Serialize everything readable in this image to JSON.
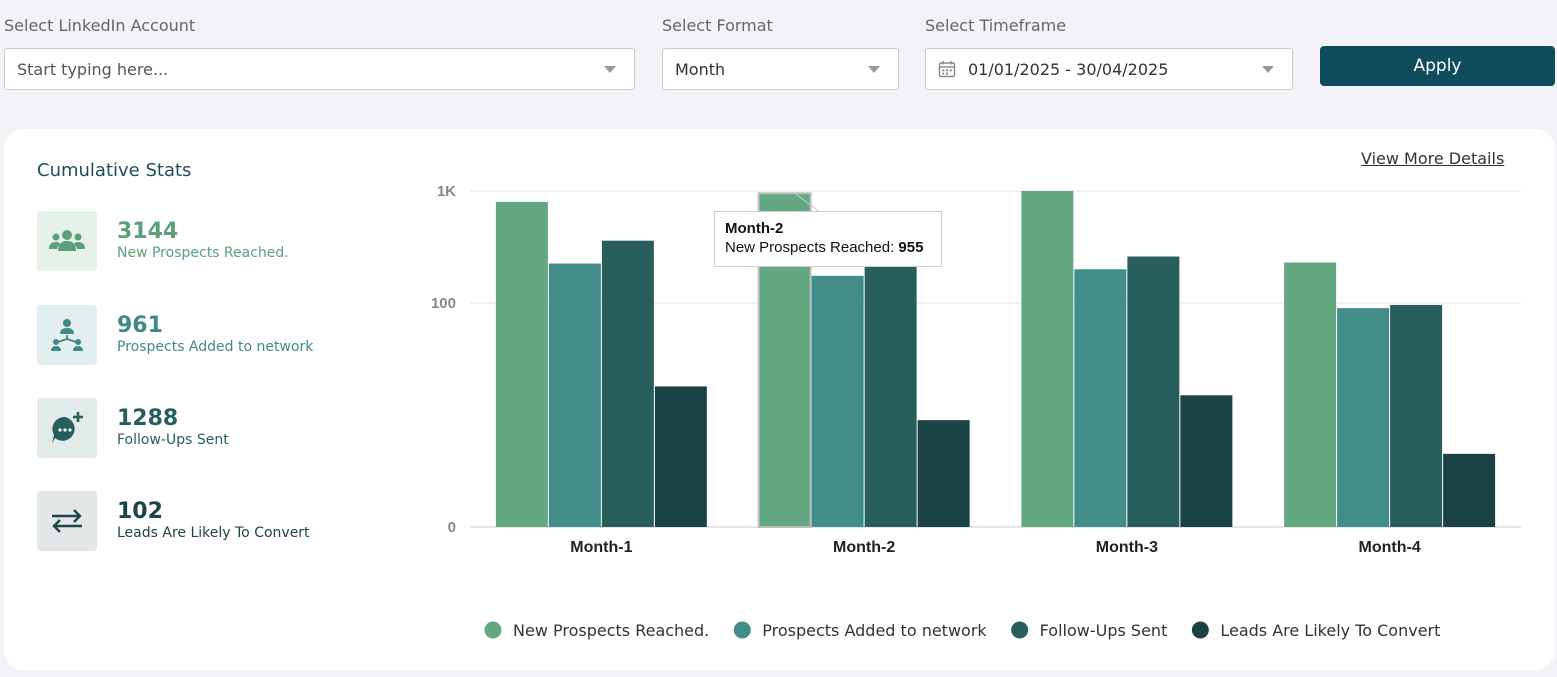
{
  "filters": {
    "account_label": "Select LinkedIn Account",
    "account_placeholder": "Start typing here...",
    "format_label": "Select Format",
    "format_value": "Month",
    "timeframe_label": "Select Timeframe",
    "timeframe_value": "01/01/2025 - 30/04/2025",
    "apply_label": "Apply"
  },
  "card": {
    "title": "Cumulative Stats",
    "view_more": "View More Details"
  },
  "stats": [
    {
      "value": "3144",
      "label": "New Prospects Reached.",
      "color": "#5aa07a",
      "bg": "#e6f1ea",
      "icon": "users-group-icon"
    },
    {
      "value": "961",
      "label": "Prospects Added to network",
      "color": "#3f8a87",
      "bg": "#e3efee",
      "icon": "network-icon"
    },
    {
      "value": "1288",
      "label": "Follow-Ups Sent",
      "color": "#285f5d",
      "bg": "#e2ebea",
      "icon": "chat-plus-icon"
    },
    {
      "value": "102",
      "label": "Leads Are Likely To Convert",
      "color": "#1d4446",
      "bg": "#e3e7e8",
      "icon": "swap-arrows-icon"
    }
  ],
  "tooltip": {
    "title": "Month-2",
    "series": "New Prospects Reached:",
    "value": "955"
  },
  "chart_data": {
    "type": "bar",
    "categories": [
      "Month-1",
      "Month-2",
      "Month-3",
      "Month-4"
    ],
    "y_scale": "log",
    "ylim": [
      1,
      1000
    ],
    "y_ticks": [
      {
        "value": 1,
        "label": "0"
      },
      {
        "value": 100,
        "label": "100"
      },
      {
        "value": 1000,
        "label": "1K"
      }
    ],
    "grid": true,
    "legend": "bottom",
    "highlight_category": "Month-2",
    "series": [
      {
        "name": "New Prospects Reached.",
        "color": "#63a882",
        "values": [
          800,
          955,
          1000,
          230
        ]
      },
      {
        "name": "Prospects Added to network",
        "color": "#428c89",
        "values": [
          225,
          175,
          200,
          90
        ]
      },
      {
        "name": "Follow-Ups Sent",
        "color": "#285f5d",
        "values": [
          360,
          235,
          260,
          96
        ]
      },
      {
        "name": "Leads Are Likely To Convert",
        "color": "#1b4245",
        "values": [
          18,
          9,
          15,
          4.5
        ]
      }
    ]
  }
}
